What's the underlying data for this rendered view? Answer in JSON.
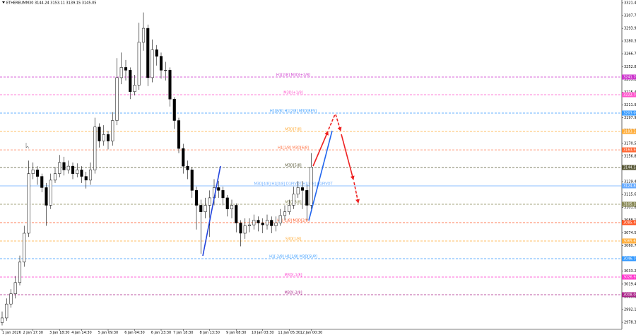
{
  "chart_data": {
    "type": "candlestick",
    "title": "ETHEREUMM30  3144.24 3153.11 3139.15 3145.05",
    "categories": [
      "1 Jan 2026",
      null,
      null,
      null,
      null,
      null,
      null,
      "2 Jan 17:30",
      null,
      null,
      null,
      null,
      null,
      "3 Jan 18:30",
      null,
      null,
      null,
      null,
      "4 Jan 14:30",
      null,
      null,
      null,
      null,
      null,
      "5 Jan 09:30",
      null,
      null,
      null,
      null,
      null,
      "6 Jan 04:30",
      null,
      null,
      null,
      null,
      null,
      "6 Jan 23:30",
      null,
      null,
      null,
      null,
      "7 Jan 18:30",
      null,
      null,
      null,
      null,
      null,
      "8 Jan 13:30",
      null,
      null,
      null,
      null,
      null,
      "9 Jan 08:30",
      null,
      null,
      null,
      null,
      null,
      "10 Jan 03:30",
      null,
      null,
      null,
      null,
      null,
      "11 Jan 05:30",
      null,
      null,
      null,
      null,
      "12 Jan 00:30"
    ],
    "open": [
      2978,
      2983,
      2998,
      3009,
      3021,
      3043,
      3074,
      3138,
      3142,
      3135,
      3123,
      3104,
      3131,
      3138,
      3150,
      3142,
      3146,
      3138,
      3142,
      3135,
      3131,
      3142,
      3188,
      3173,
      3180,
      3173,
      3195,
      3241,
      3252,
      3249,
      3226,
      3233,
      3279,
      3294,
      3241,
      3271,
      3264,
      3249,
      3249,
      3218,
      3195,
      3165,
      3146,
      3142,
      3120,
      3104,
      3097,
      3104,
      3112,
      3123,
      3120,
      3112,
      3100,
      3104,
      3085,
      3074,
      3082,
      3083,
      3088,
      3085,
      3083,
      3088,
      3082,
      3085,
      3093,
      3097,
      3104,
      3116,
      3123,
      3120,
      3104
    ],
    "high": [
      2990,
      3004,
      3014,
      3028,
      3050,
      3082,
      3152,
      3150,
      3146,
      3138,
      3128,
      3138,
      3145,
      3158,
      3156,
      3152,
      3150,
      3149,
      3146,
      3140,
      3150,
      3198,
      3192,
      3190,
      3184,
      3204,
      3262,
      3268,
      3260,
      3252,
      3244,
      3300,
      3311,
      3298,
      3282,
      3276,
      3268,
      3258,
      3252,
      3220,
      3198,
      3170,
      3152,
      3145,
      3124,
      3110,
      3112,
      3120,
      3132,
      3130,
      3124,
      3115,
      3110,
      3106,
      3088,
      3090,
      3090,
      3094,
      3092,
      3090,
      3094,
      3092,
      3092,
      3100,
      3104,
      3110,
      3124,
      3130,
      3130,
      3126,
      3160
    ],
    "low": [
      2975,
      2980,
      2994,
      3004,
      3018,
      3038,
      3070,
      3132,
      3126,
      3118,
      3082,
      3100,
      3128,
      3134,
      3136,
      3138,
      3132,
      3134,
      3128,
      3122,
      3126,
      3138,
      3166,
      3168,
      3164,
      3168,
      3190,
      3234,
      3238,
      3218,
      3222,
      3228,
      3270,
      3232,
      3236,
      3254,
      3240,
      3238,
      3210,
      3186,
      3160,
      3138,
      3132,
      3112,
      3078,
      3052,
      3090,
      3070,
      3104,
      3112,
      3104,
      3092,
      3090,
      3075,
      3060,
      3068,
      3075,
      3078,
      3076,
      3074,
      3078,
      3074,
      3076,
      3082,
      3088,
      3094,
      3100,
      3112,
      3100,
      3088,
      3100
    ],
    "close": [
      2983,
      2998,
      3009,
      3021,
      3043,
      3074,
      3138,
      3142,
      3135,
      3123,
      3104,
      3131,
      3138,
      3150,
      3142,
      3146,
      3138,
      3142,
      3135,
      3131,
      3142,
      3188,
      3173,
      3180,
      3173,
      3195,
      3241,
      3252,
      3249,
      3226,
      3233,
      3279,
      3294,
      3241,
      3271,
      3264,
      3249,
      3249,
      3218,
      3195,
      3165,
      3146,
      3142,
      3120,
      3104,
      3097,
      3104,
      3112,
      3123,
      3120,
      3112,
      3100,
      3104,
      3085,
      3074,
      3082,
      3083,
      3088,
      3085,
      3083,
      3088,
      3082,
      3085,
      3093,
      3097,
      3104,
      3116,
      3123,
      3120,
      3104,
      3145
    ],
    "ylim": [
      2970.8,
      3324.4
    ],
    "yticks": [
      {
        "value": 3321.4,
        "label": "3321.40"
      },
      {
        "value": 3307.75,
        "label": "3307.75"
      },
      {
        "value": 3293.95,
        "label": "3293.95"
      },
      {
        "value": 3280.35,
        "label": "3280.35"
      },
      {
        "value": 3266.7,
        "label": "3266.70"
      },
      {
        "value": 3252.85,
        "label": "3252.85"
      },
      {
        "value": 3239.2,
        "label": "3239.20"
      },
      {
        "value": 3225.4,
        "label": "3225.40"
      },
      {
        "value": 3211.9,
        "label": "3211.90"
      },
      {
        "value": 3197.95,
        "label": "3197.95"
      },
      {
        "value": 3184.4,
        "label": "3184.40"
      },
      {
        "value": 3170.5,
        "label": "3170.50"
      },
      {
        "value": 3156.85,
        "label": "3156.85"
      },
      {
        "value": 3143.15,
        "label": "3143.15"
      },
      {
        "value": 3129.4,
        "label": "3129.40"
      },
      {
        "value": 3115.6,
        "label": "3115.60"
      },
      {
        "value": 3101.85,
        "label": "3101.85"
      },
      {
        "value": 3088.1,
        "label": "3088.10"
      },
      {
        "value": 3074.5,
        "label": "3074.50"
      },
      {
        "value": 3060.75,
        "label": "3060.75"
      },
      {
        "value": 3046.95,
        "label": "3046.95"
      },
      {
        "value": 3033.25,
        "label": "3033.25"
      },
      {
        "value": 3019.4,
        "label": "3019.40"
      },
      {
        "value": 3005.8,
        "label": "3005.80"
      },
      {
        "value": 2992.15,
        "label": "2992.15"
      },
      {
        "value": 2978.35,
        "label": "2978.35"
      }
    ],
    "levels": [
      {
        "label": "H1[2/8] M3D[+2/8]",
        "price": 3241.7,
        "price_label": "3241.70",
        "color": "#cc33cc",
        "style": "dashed"
      },
      {
        "label": "M3D[+1/8]",
        "price": 3222.7,
        "price_label": "3222.70",
        "color": "#ff55cc",
        "style": "dashed"
      },
      {
        "label": "H1[8/8] H1[2/8] M3D[RES]",
        "price": 3203,
        "price_label": "3203.00",
        "color": "#3399ff",
        "style": "dashed"
      },
      {
        "label": "M3D[7/8]",
        "price": 3183.25,
        "price_label": "3183.25",
        "color": "#ffaa33",
        "style": "dashed"
      },
      {
        "label": "H1[1/8] M3D[6/8]",
        "price": 3163.5,
        "price_label": "3163.50",
        "color": "#ff6633",
        "style": "dashed"
      },
      {
        "label": "M3D[5/8]",
        "price": 3144.55,
        "price_label": "3144.55",
        "color": "#555533",
        "style": "dashed"
      },
      {
        "label": "M3D[4/8] H1[0/8] D1PIVOT H1[4/8] H1PIVOT",
        "price": 3124.85,
        "price_label": "3124.85",
        "color": "#66aaff",
        "style": "solid"
      },
      {
        "label": "M3D[3/8]",
        "price": 3105.1,
        "price_label": "3105.10",
        "color": "#888855",
        "style": "dashed"
      },
      {
        "label": "H1[-1/8] M3D[2/8]",
        "price": 3085.4,
        "price_label": "3085.40",
        "color": "#ff5522",
        "style": "dashed"
      },
      {
        "label": "S3D[1/8]",
        "price": 3065.65,
        "price_label": "3065.65",
        "color": "#ffaa33",
        "style": "dashed"
      },
      {
        "label": "H1[-2/8] H1[1/8] M3D[SUP]",
        "price": 3046.7,
        "price_label": "3046.70",
        "color": "#3399ff",
        "style": "dashed"
      },
      {
        "label": "M3D[-1/8]",
        "price": 3026.95,
        "price_label": "3026.95",
        "color": "#ff33cc",
        "style": "dashed"
      },
      {
        "label": "M3D[-2/8]",
        "price": 3008,
        "price_label": "3008.00",
        "color": "#aa2288",
        "style": "dashed"
      }
    ]
  }
}
